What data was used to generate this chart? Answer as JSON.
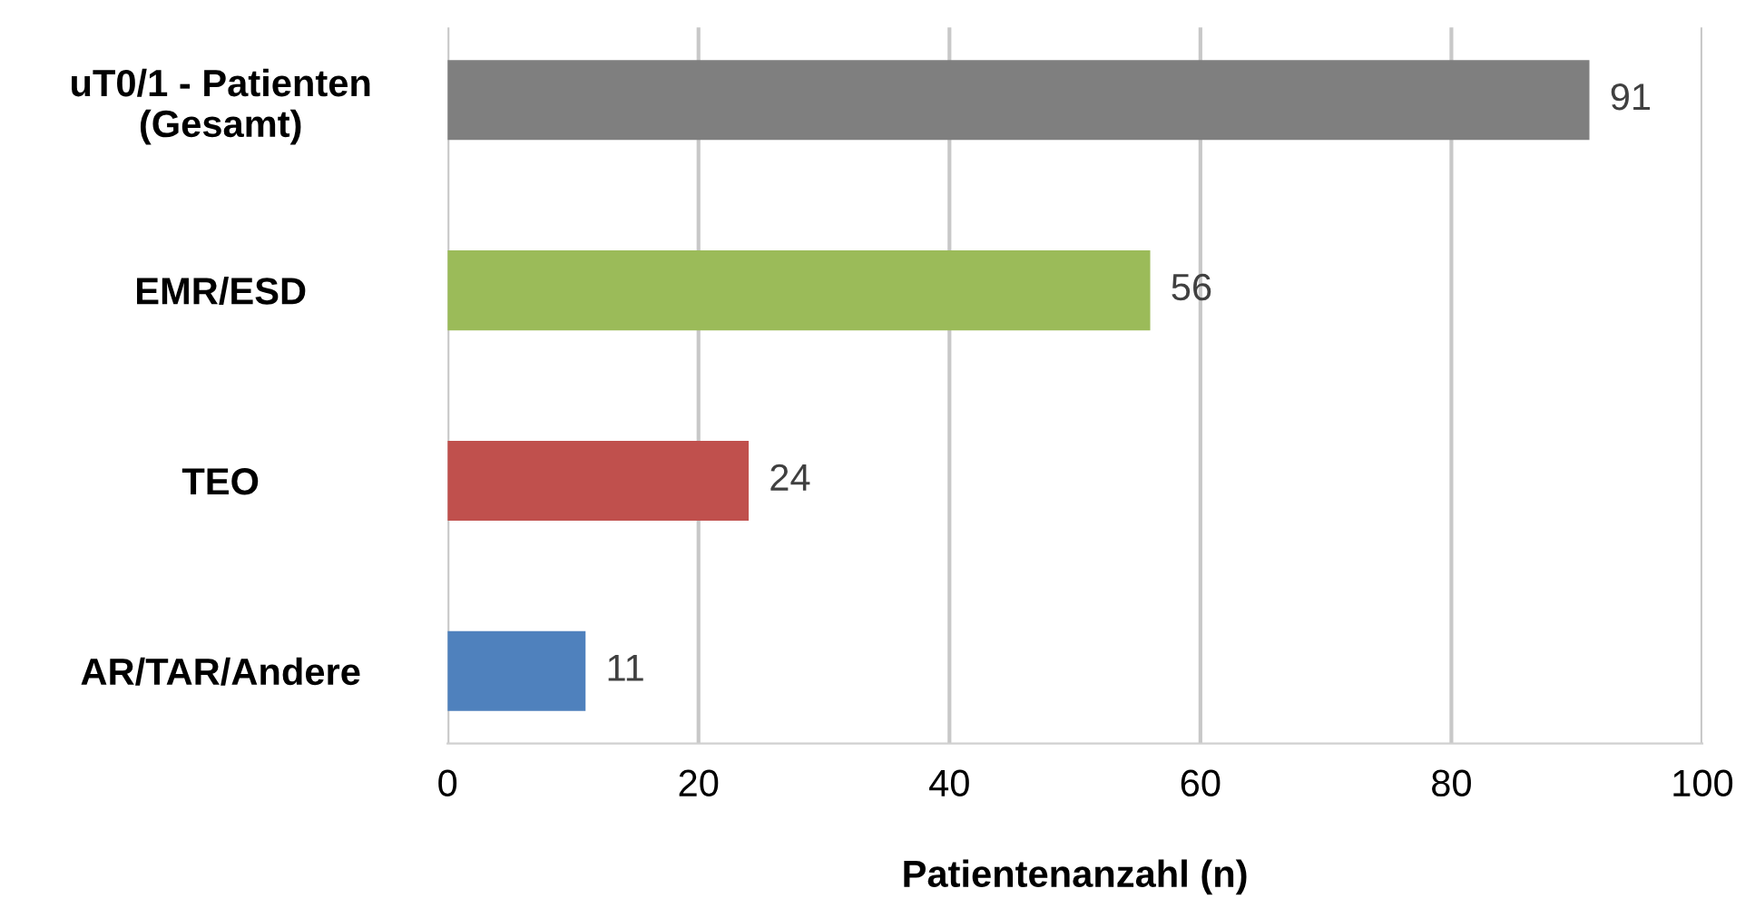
{
  "chart_data": {
    "type": "bar",
    "orientation": "horizontal",
    "categories": [
      "uT0/1 - Patienten\n(Gesamt)",
      "EMR/ESD",
      "TEO",
      "AR/TAR/Andere"
    ],
    "values": [
      91,
      56,
      24,
      11
    ],
    "colors": [
      "#7f7f7f",
      "#9bbb59",
      "#c0504d",
      "#4f81bd"
    ],
    "xlabel": "Patientenanzahl (n)",
    "xlim": [
      0,
      100
    ],
    "xticks": [
      0,
      20,
      40,
      60,
      80,
      100
    ],
    "grid": "x",
    "data_labels": true
  }
}
